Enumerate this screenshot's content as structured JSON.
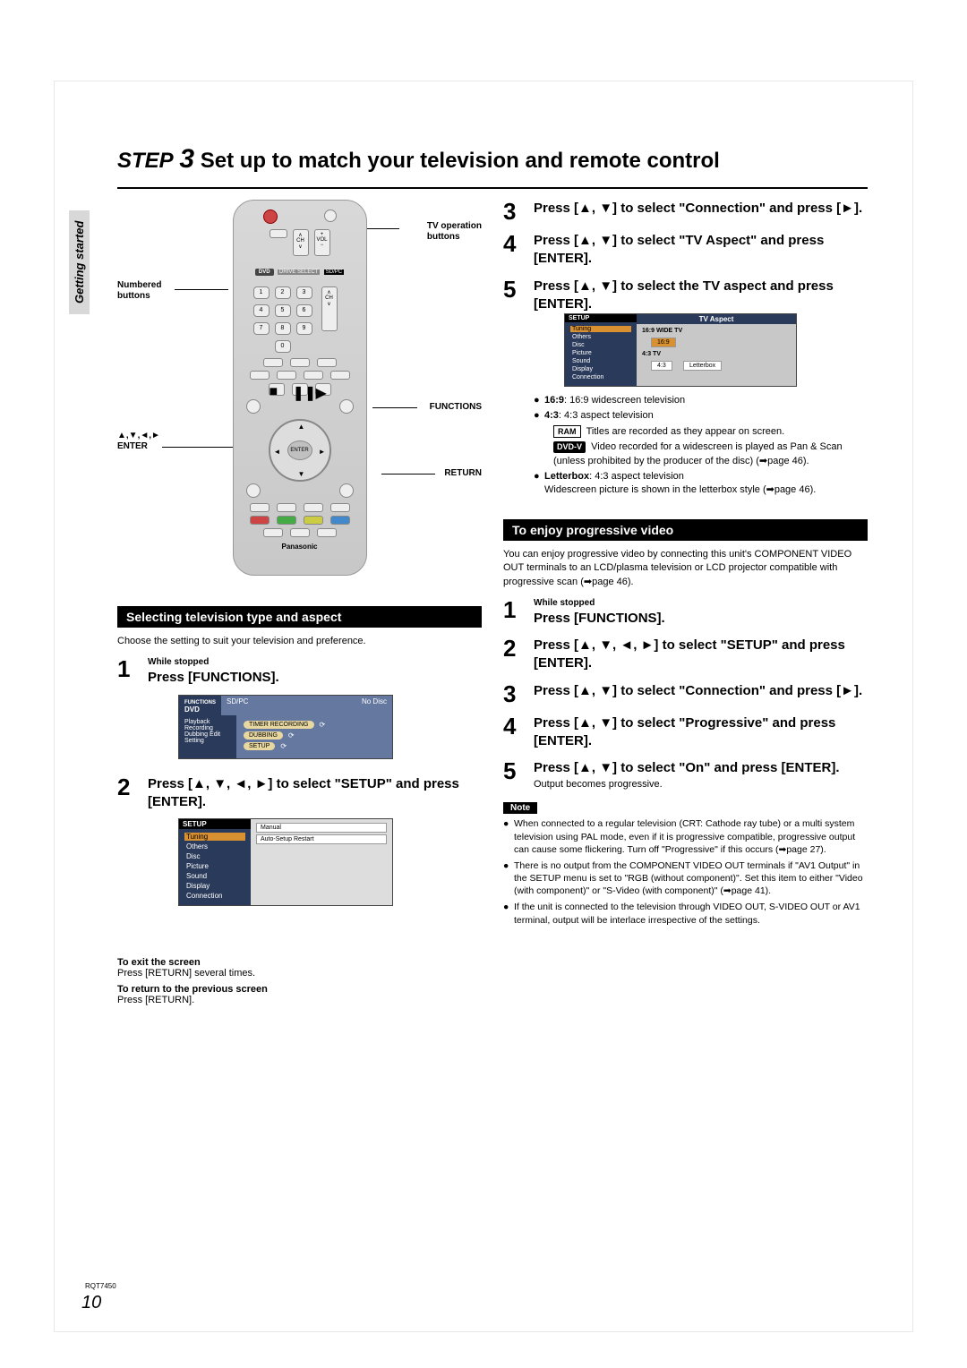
{
  "page": {
    "step_label_word": "STEP",
    "step_label_num": "3",
    "step_title": "Set up to match your television and remote control",
    "side_tab": "Getting started",
    "doc_code": "RQT7450",
    "page_number": "10"
  },
  "remote": {
    "callout_tv_buttons": "TV operation\nbuttons",
    "callout_numbered": "Numbered\nbuttons",
    "callout_functions": "FUNCTIONS",
    "callout_enter": "▲,▼,◄,►\nENTER",
    "callout_return": "RETURN",
    "brand": "Panasonic",
    "dvd_label": "DVD",
    "drive_select": "DRIVE SELECT",
    "sdpc": "SD/PC",
    "enter_label": "ENTER",
    "ch_label": "CH",
    "vol_label": "VOLUME",
    "numbers": [
      "1",
      "2",
      "3",
      "4",
      "5",
      "6",
      "7",
      "8",
      "9",
      "0"
    ]
  },
  "left": {
    "section1_title": "Selecting television type and aspect",
    "section1_intro": "Choose the setting to suit your television and preference.",
    "step1_hint": "While stopped",
    "step1_main": "Press [FUNCTIONS].",
    "step2_main": "Press [▲, ▼, ◄, ►] to select \"SETUP\" and press [ENTER].",
    "osd_functions": {
      "tab_functions": "FUNCTIONS",
      "tab_dvd": "DVD",
      "tab_sdpc": "SD/PC",
      "no_disc": "No Disc",
      "menu": [
        "Playback",
        "Recording",
        "Dubbing Edit",
        "Setting"
      ],
      "items": [
        "TIMER RECORDING",
        "DUBBING",
        "SETUP"
      ]
    },
    "osd_setup": {
      "setup": "SETUP",
      "menu": [
        "Tuning",
        "Others",
        "Disc",
        "Picture",
        "Sound",
        "Display",
        "Connection"
      ],
      "selected": "Tuning",
      "right_items": [
        "Manual",
        "Auto-Setup Restart"
      ]
    }
  },
  "right": {
    "step3_main": "Press [▲, ▼] to select \"Connection\" and press [►].",
    "step4_main": "Press [▲, ▼] to select \"TV Aspect\" and press [ENTER].",
    "step5_main": "Press [▲, ▼] to select the TV aspect and press [ENTER].",
    "tv_aspect": {
      "setup": "SETUP",
      "header": "TV Aspect",
      "menu": [
        "Tuning",
        "Others",
        "Disc",
        "Picture",
        "Sound",
        "Display",
        "Connection"
      ],
      "selected": "Tuning",
      "grp1": "16:9 WIDE TV",
      "opt1": "16:9",
      "grp2": "4:3 TV",
      "opt2": "4:3",
      "opt3": "Letterbox"
    },
    "bullets": {
      "b1_label": "16:9",
      "b1_text": ": 16:9 widescreen television",
      "b2_label": "4:3",
      "b2_text": ": 4:3 aspect television",
      "ram_badge": "RAM",
      "ram_text": "Titles are recorded as they appear on screen.",
      "dvdv_badge": "DVD-V",
      "dvdv_text": "Video recorded for a widescreen is played as Pan & Scan (unless prohibited by the producer of the disc) (➡page 46).",
      "b3_label": "Letterbox",
      "b3_text": ": 4:3 aspect television",
      "b3_text2": "Widescreen picture is shown in the letterbox style (➡page 46)."
    },
    "section2_title": "To enjoy progressive video",
    "section2_intro": "You can enjoy progressive video by connecting this unit's COMPONENT VIDEO OUT terminals to an LCD/plasma television or LCD projector compatible with progressive scan (➡page 46).",
    "p_step1_hint": "While stopped",
    "p_step1_main": "Press [FUNCTIONS].",
    "p_step2_main": "Press [▲, ▼, ◄, ►] to select \"SETUP\" and press [ENTER].",
    "p_step3_main": "Press [▲, ▼] to select \"Connection\" and press [►].",
    "p_step4_main": "Press [▲, ▼] to select \"Progressive\" and press [ENTER].",
    "p_step5_main": "Press [▲, ▼] to select \"On\" and press [ENTER].",
    "p_step5_sub": "Output becomes progressive.",
    "note_label": "Note",
    "notes": {
      "n1": "When connected to a regular television (CRT: Cathode ray tube) or a multi system television using PAL mode, even if it is progressive compatible, progressive output can cause some flickering. Turn off \"Progressive\" if this occurs (➡page 27).",
      "n2": "There is no output from the COMPONENT VIDEO OUT terminals if \"AV1 Output\" in the SETUP menu is set to \"RGB (without component)\". Set this item to either \"Video (with component)\" or \"S-Video (with component)\" (➡page 41).",
      "n3": "If the unit is connected to the television through VIDEO OUT, S-VIDEO OUT or AV1 terminal, output will be interlace irrespective of the settings."
    }
  },
  "footer": {
    "exit_head": "To exit the screen",
    "exit_text": "Press [RETURN] several times.",
    "return_head": "To return to the previous screen",
    "return_text": "Press [RETURN]."
  },
  "colors": {
    "accent_orange": "#d89030",
    "menu_blue": "#2a3a5a",
    "panel_blue": "#6478a0",
    "bg_gray": "#d8d8d8"
  }
}
